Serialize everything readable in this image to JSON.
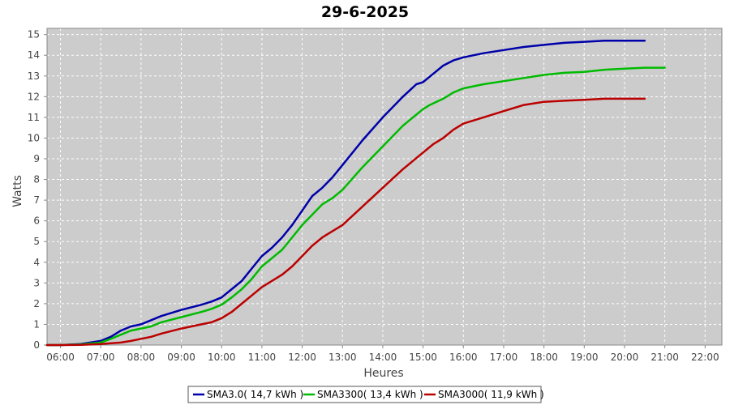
{
  "chart_data": {
    "type": "line",
    "title": "29-6-2025",
    "xlabel": "Heures",
    "ylabel": "Watts",
    "x_ticks": [
      "06:00",
      "07:00",
      "08:00",
      "09:00",
      "10:00",
      "11:00",
      "12:00",
      "13:00",
      "14:00",
      "15:00",
      "16:00",
      "17:00",
      "18:00",
      "19:00",
      "20:00",
      "21:00",
      "22:00"
    ],
    "xlim": [
      "05:40",
      "22:25"
    ],
    "ylim": [
      0,
      15.3
    ],
    "y_ticks": [
      0,
      1,
      2,
      3,
      4,
      5,
      6,
      7,
      8,
      9,
      10,
      11,
      12,
      13,
      14,
      15
    ],
    "grid": true,
    "legend_position": "bottom",
    "background": "#cccccc",
    "series": [
      {
        "name": "SMA3.0( 14,7 kWh )",
        "color": "#0000aa",
        "points": [
          [
            "05:40",
            0
          ],
          [
            "06:00",
            0
          ],
          [
            "06:30",
            0.05
          ],
          [
            "07:00",
            0.2
          ],
          [
            "07:15",
            0.4
          ],
          [
            "07:30",
            0.7
          ],
          [
            "07:45",
            0.9
          ],
          [
            "08:00",
            1.0
          ],
          [
            "08:15",
            1.2
          ],
          [
            "08:30",
            1.4
          ],
          [
            "09:00",
            1.7
          ],
          [
            "09:30",
            1.95
          ],
          [
            "09:45",
            2.1
          ],
          [
            "10:00",
            2.3
          ],
          [
            "10:15",
            2.7
          ],
          [
            "10:30",
            3.1
          ],
          [
            "10:45",
            3.7
          ],
          [
            "11:00",
            4.3
          ],
          [
            "11:15",
            4.7
          ],
          [
            "11:30",
            5.2
          ],
          [
            "11:45",
            5.8
          ],
          [
            "12:00",
            6.5
          ],
          [
            "12:15",
            7.2
          ],
          [
            "12:30",
            7.6
          ],
          [
            "12:45",
            8.1
          ],
          [
            "13:00",
            8.7
          ],
          [
            "13:30",
            9.9
          ],
          [
            "14:00",
            11.0
          ],
          [
            "14:30",
            12.0
          ],
          [
            "14:50",
            12.6
          ],
          [
            "15:00",
            12.7
          ],
          [
            "15:15",
            13.1
          ],
          [
            "15:30",
            13.5
          ],
          [
            "15:45",
            13.75
          ],
          [
            "16:00",
            13.9
          ],
          [
            "16:30",
            14.1
          ],
          [
            "17:00",
            14.25
          ],
          [
            "17:30",
            14.4
          ],
          [
            "18:00",
            14.5
          ],
          [
            "18:30",
            14.6
          ],
          [
            "19:00",
            14.65
          ],
          [
            "19:30",
            14.7
          ],
          [
            "20:00",
            14.7
          ],
          [
            "20:30",
            14.7
          ]
        ]
      },
      {
        "name": "SMA3300( 13,4 kWh )",
        "color": "#00bb00",
        "points": [
          [
            "05:40",
            0
          ],
          [
            "06:00",
            0
          ],
          [
            "06:30",
            0.03
          ],
          [
            "07:00",
            0.12
          ],
          [
            "07:15",
            0.3
          ],
          [
            "07:30",
            0.5
          ],
          [
            "07:45",
            0.7
          ],
          [
            "08:00",
            0.8
          ],
          [
            "08:15",
            0.9
          ],
          [
            "08:30",
            1.1
          ],
          [
            "09:00",
            1.35
          ],
          [
            "09:30",
            1.6
          ],
          [
            "09:45",
            1.75
          ],
          [
            "10:00",
            1.95
          ],
          [
            "10:15",
            2.3
          ],
          [
            "10:30",
            2.7
          ],
          [
            "10:45",
            3.2
          ],
          [
            "11:00",
            3.8
          ],
          [
            "11:15",
            4.2
          ],
          [
            "11:30",
            4.6
          ],
          [
            "11:45",
            5.2
          ],
          [
            "12:00",
            5.8
          ],
          [
            "12:15",
            6.3
          ],
          [
            "12:30",
            6.8
          ],
          [
            "12:45",
            7.1
          ],
          [
            "13:00",
            7.5
          ],
          [
            "13:30",
            8.6
          ],
          [
            "14:00",
            9.6
          ],
          [
            "14:30",
            10.6
          ],
          [
            "15:00",
            11.4
          ],
          [
            "15:10",
            11.6
          ],
          [
            "15:30",
            11.9
          ],
          [
            "15:45",
            12.2
          ],
          [
            "16:00",
            12.4
          ],
          [
            "16:30",
            12.6
          ],
          [
            "17:00",
            12.75
          ],
          [
            "17:30",
            12.9
          ],
          [
            "18:00",
            13.05
          ],
          [
            "18:30",
            13.15
          ],
          [
            "19:00",
            13.2
          ],
          [
            "19:30",
            13.3
          ],
          [
            "20:00",
            13.35
          ],
          [
            "20:30",
            13.4
          ],
          [
            "21:00",
            13.4
          ]
        ]
      },
      {
        "name": "SMA3000( 11,9 kWh )",
        "color": "#bb0000",
        "points": [
          [
            "05:40",
            0
          ],
          [
            "06:00",
            0
          ],
          [
            "06:30",
            0.01
          ],
          [
            "07:00",
            0.05
          ],
          [
            "07:30",
            0.12
          ],
          [
            "07:45",
            0.2
          ],
          [
            "08:00",
            0.3
          ],
          [
            "08:15",
            0.4
          ],
          [
            "08:30",
            0.55
          ],
          [
            "09:00",
            0.8
          ],
          [
            "09:30",
            1.0
          ],
          [
            "09:45",
            1.1
          ],
          [
            "10:00",
            1.3
          ],
          [
            "10:15",
            1.6
          ],
          [
            "10:30",
            2.0
          ],
          [
            "10:45",
            2.4
          ],
          [
            "11:00",
            2.8
          ],
          [
            "11:15",
            3.1
          ],
          [
            "11:30",
            3.4
          ],
          [
            "11:45",
            3.8
          ],
          [
            "12:00",
            4.3
          ],
          [
            "12:15",
            4.8
          ],
          [
            "12:30",
            5.2
          ],
          [
            "12:45",
            5.5
          ],
          [
            "13:00",
            5.8
          ],
          [
            "13:30",
            6.7
          ],
          [
            "14:00",
            7.6
          ],
          [
            "14:30",
            8.5
          ],
          [
            "15:00",
            9.3
          ],
          [
            "15:15",
            9.7
          ],
          [
            "15:30",
            10.0
          ],
          [
            "15:45",
            10.4
          ],
          [
            "16:00",
            10.7
          ],
          [
            "16:30",
            11.0
          ],
          [
            "17:00",
            11.3
          ],
          [
            "17:30",
            11.6
          ],
          [
            "18:00",
            11.75
          ],
          [
            "18:30",
            11.8
          ],
          [
            "19:00",
            11.85
          ],
          [
            "19:30",
            11.9
          ],
          [
            "20:00",
            11.9
          ],
          [
            "20:30",
            11.9
          ]
        ]
      }
    ]
  }
}
